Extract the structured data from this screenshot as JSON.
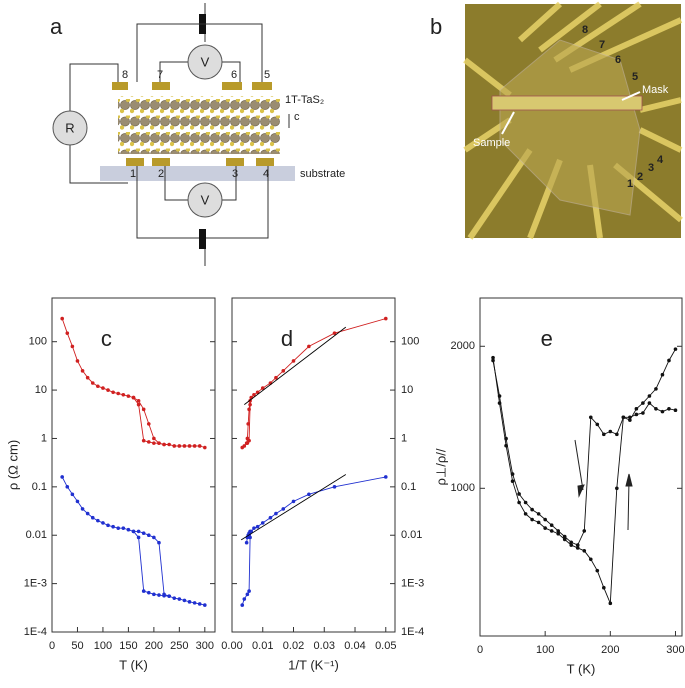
{
  "diagram": {
    "label": "a",
    "top_contacts": [
      "8",
      "7",
      "6",
      "5"
    ],
    "bottom_contacts": [
      "1",
      "2",
      "3",
      "4"
    ],
    "voltmeters": [
      "V",
      "V"
    ],
    "resistor": "R",
    "material": "1T-TaS₂",
    "axis": "c",
    "substrate": "substrate"
  },
  "photo": {
    "label": "b",
    "contacts": [
      "8",
      "7",
      "6",
      "5",
      "1",
      "2",
      "3",
      "4"
    ],
    "mask": "Mask",
    "sample": "Sample"
  },
  "chart_data": [
    {
      "type": "line",
      "label": "c",
      "xlabel": "T (K)",
      "ylabel": "ρ (Ω cm)",
      "log_y": true,
      "xlim": [
        0,
        320
      ],
      "xticks": [
        0,
        50,
        100,
        150,
        200,
        250,
        300
      ],
      "ylim": [
        0.0001,
        800
      ],
      "yticks": [
        {
          "value": 0.0001,
          "label": "1E-4"
        },
        {
          "value": 0.001,
          "label": "1E-3"
        },
        0.01,
        0.1,
        1,
        10,
        100
      ],
      "ytick_side": "left",
      "series": [
        {
          "color": "#d02020",
          "x": [
            20,
            30,
            40,
            50,
            60,
            70,
            80,
            90,
            100,
            110,
            120,
            130,
            140,
            150,
            160,
            170,
            180,
            190,
            200,
            210,
            220,
            230,
            240,
            250,
            260,
            270,
            280,
            290,
            300
          ],
          "values": [
            300,
            150,
            80,
            40,
            25,
            18,
            14,
            12,
            11,
            10,
            9,
            8.5,
            8,
            7.5,
            7,
            5,
            0.9,
            0.85,
            0.8,
            0.8,
            0.75,
            0.75,
            0.7,
            0.7,
            0.7,
            0.7,
            0.7,
            0.7,
            0.65
          ]
        },
        {
          "color": "#d02020",
          "x": [
            160,
            170,
            180,
            190,
            200,
            210,
            220
          ],
          "values": [
            7,
            6,
            4,
            2,
            1,
            0.8,
            0.75
          ]
        },
        {
          "color": "#2030d0",
          "x": [
            20,
            30,
            40,
            50,
            60,
            70,
            80,
            90,
            100,
            110,
            120,
            130,
            140,
            150,
            160,
            170,
            180,
            190,
            200,
            210,
            220,
            230,
            240,
            250,
            260,
            270,
            280,
            290,
            300
          ],
          "values": [
            0.16,
            0.1,
            0.07,
            0.05,
            0.035,
            0.028,
            0.023,
            0.02,
            0.018,
            0.016,
            0.015,
            0.014,
            0.014,
            0.013,
            0.012,
            0.009,
            0.0007,
            0.00065,
            0.0006,
            0.00058,
            0.00056,
            0.00055,
            0.0005,
            0.00048,
            0.00045,
            0.00042,
            0.0004,
            0.00038,
            0.00036
          ]
        },
        {
          "color": "#2030d0",
          "x": [
            160,
            170,
            180,
            190,
            200,
            210,
            220,
            230
          ],
          "values": [
            0.012,
            0.012,
            0.011,
            0.01,
            0.009,
            0.007,
            0.0006,
            0.00055
          ]
        }
      ]
    },
    {
      "type": "line",
      "label": "d",
      "xlabel": "1/T (K⁻¹)",
      "log_y": true,
      "xlim": [
        0,
        0.053
      ],
      "xticks": [
        {
          "value": 0,
          "label": "0.00"
        },
        0.01,
        0.02,
        0.03,
        0.04,
        0.05
      ],
      "ylim": [
        0.0001,
        800
      ],
      "yticks": [
        {
          "value": 0.0001,
          "label": "1E-4"
        },
        {
          "value": 0.001,
          "label": "1E-3"
        },
        0.01,
        0.1,
        1,
        10,
        100
      ],
      "ytick_side": "right",
      "series": [
        {
          "color": "#d02020",
          "x": [
            0.00333,
            0.004,
            0.005,
            0.00556,
            0.00588,
            0.00625,
            0.00714,
            0.00833,
            0.01,
            0.0125,
            0.01429,
            0.01667,
            0.02,
            0.025,
            0.03333,
            0.05
          ],
          "values": [
            0.65,
            0.7,
            0.8,
            0.9,
            5,
            7,
            8,
            9,
            11,
            14,
            18,
            25,
            40,
            80,
            150,
            300
          ]
        },
        {
          "color": "#d02020",
          "x": [
            0.00476,
            0.005,
            0.00526,
            0.00556,
            0.00588
          ],
          "values": [
            0.8,
            1,
            2,
            4,
            6
          ]
        },
        {
          "color": "#2030d0",
          "x": [
            0.00333,
            0.004,
            0.005,
            0.00556,
            0.00588,
            0.00625,
            0.00714,
            0.00833,
            0.01,
            0.0125,
            0.01429,
            0.01667,
            0.02,
            0.025,
            0.03333,
            0.05
          ],
          "values": [
            0.00036,
            0.00048,
            0.0006,
            0.0007,
            0.009,
            0.012,
            0.014,
            0.015,
            0.018,
            0.023,
            0.028,
            0.035,
            0.05,
            0.07,
            0.1,
            0.16
          ]
        },
        {
          "color": "#2030d0",
          "x": [
            0.00476,
            0.005,
            0.00526,
            0.00556,
            0.00588
          ],
          "values": [
            0.007,
            0.009,
            0.01,
            0.011,
            0.012
          ]
        },
        {
          "color": "#000000",
          "markers": false,
          "x": [
            0.004,
            0.037
          ],
          "values": [
            5,
            200
          ]
        },
        {
          "color": "#000000",
          "markers": false,
          "x": [
            0.003,
            0.037
          ],
          "values": [
            0.008,
            0.18
          ]
        }
      ]
    },
    {
      "type": "line",
      "label": "e",
      "xlabel": "T (K)",
      "ylabel": "ρ⊥/ρ//",
      "log_y": false,
      "xlim": [
        0,
        310
      ],
      "xticks": [
        0,
        100,
        200,
        300
      ],
      "ylim": [
        -40,
        2340
      ],
      "yticks": [
        1000,
        2000
      ],
      "ytick_side": "left",
      "series": [
        {
          "color": "#111111",
          "x": [
            20,
            30,
            40,
            50,
            60,
            70,
            80,
            90,
            100,
            110,
            120,
            130,
            140,
            150,
            160,
            170,
            180,
            190,
            200,
            210,
            220,
            230,
            240,
            250,
            260,
            270,
            280,
            290,
            300
          ],
          "values": [
            1920,
            1600,
            1300,
            1050,
            900,
            820,
            780,
            760,
            720,
            700,
            680,
            640,
            600,
            580,
            560,
            500,
            420,
            300,
            190,
            1000,
            1500,
            1500,
            1520,
            1530,
            1600,
            1560,
            1540,
            1560,
            1550
          ]
        },
        {
          "color": "#111111",
          "x": [
            300,
            290,
            280,
            270,
            260,
            250,
            240,
            230,
            220,
            210,
            200,
            190,
            180,
            170,
            160,
            150,
            140,
            130,
            120,
            110,
            100,
            90,
            80,
            70,
            60,
            50,
            40,
            30,
            20
          ],
          "values": [
            1980,
            1900,
            1800,
            1700,
            1650,
            1600,
            1560,
            1480,
            1500,
            1380,
            1400,
            1380,
            1450,
            1500,
            700,
            600,
            620,
            660,
            700,
            740,
            780,
            820,
            850,
            900,
            960,
            1100,
            1350,
            1650,
            1900
          ]
        }
      ]
    }
  ]
}
